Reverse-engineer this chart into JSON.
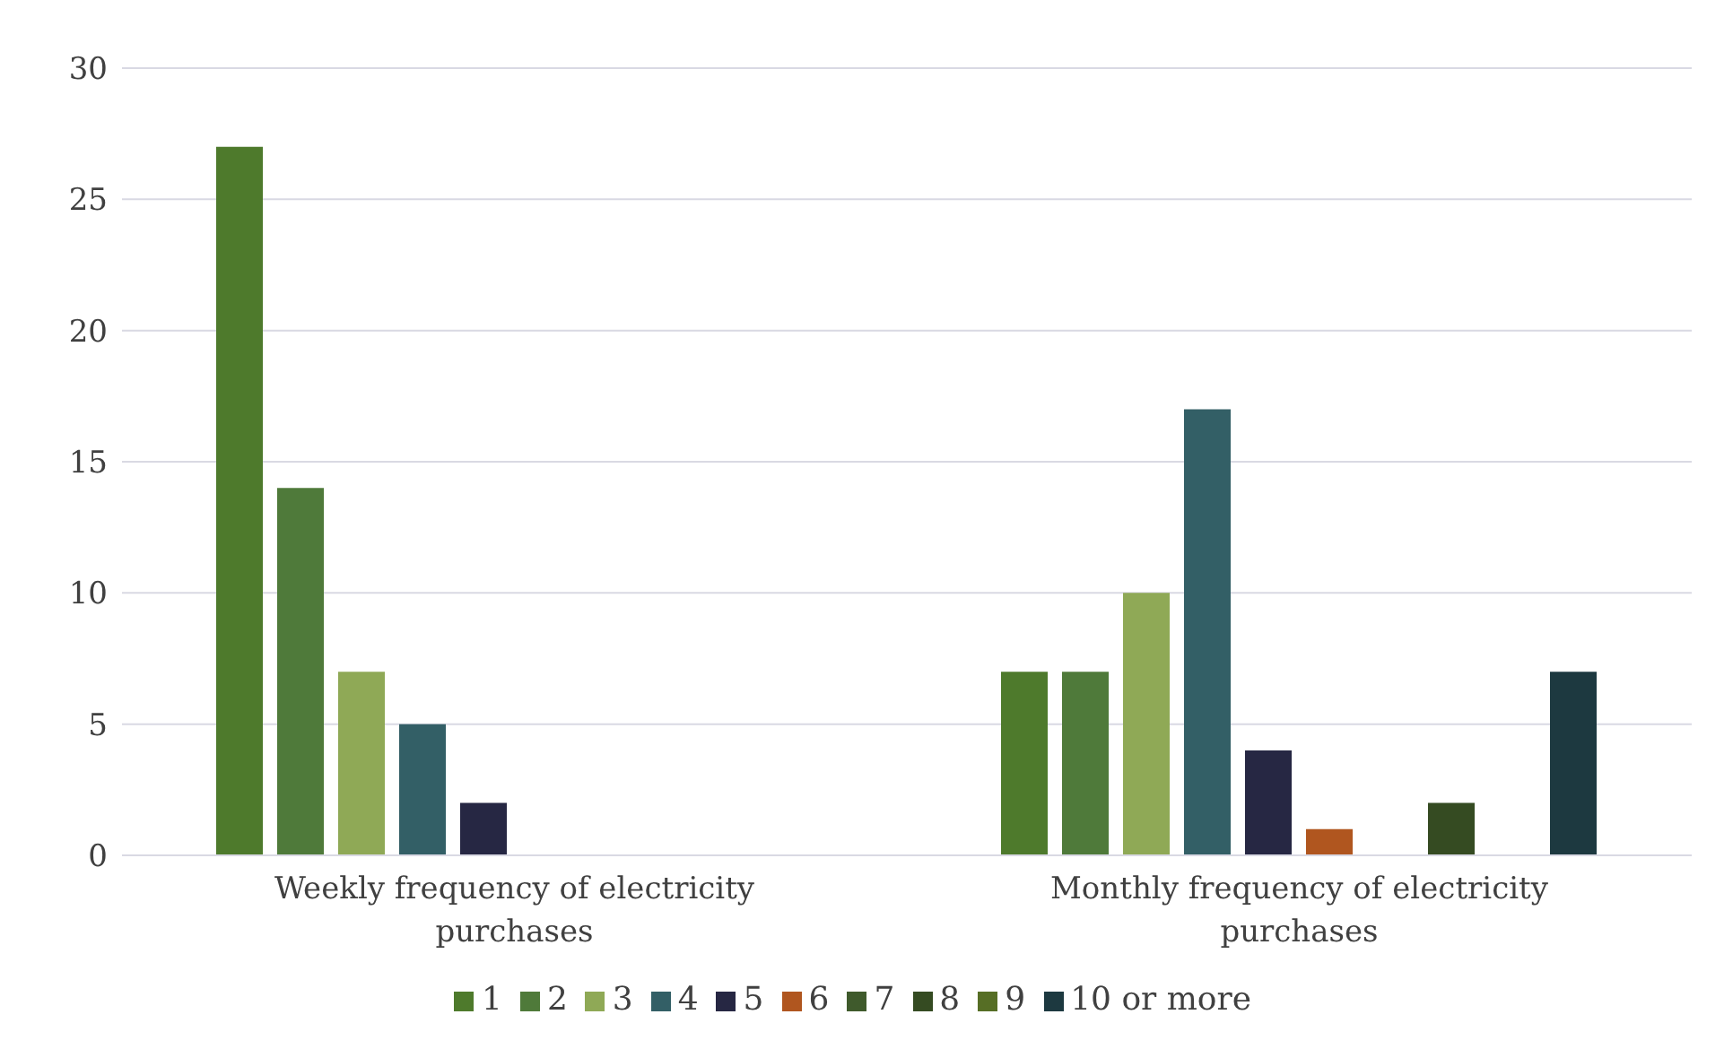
{
  "chart_data": {
    "type": "bar",
    "categories": [
      "Weekly frequency of electricity purchases",
      "Monthly frequency of electricity purchases"
    ],
    "series": [
      {
        "name": "1",
        "color": "#4e7a2c",
        "values": [
          27,
          7
        ]
      },
      {
        "name": "2",
        "color": "#4f7a3a",
        "values": [
          14,
          7
        ]
      },
      {
        "name": "3",
        "color": "#8fa956",
        "values": [
          7,
          10
        ]
      },
      {
        "name": "4",
        "color": "#335f66",
        "values": [
          5,
          17
        ]
      },
      {
        "name": "5",
        "color": "#262743",
        "values": [
          2,
          4
        ]
      },
      {
        "name": "6",
        "color": "#b0561f",
        "values": [
          0,
          1
        ]
      },
      {
        "name": "7",
        "color": "#3f5a2c",
        "values": [
          0,
          0
        ]
      },
      {
        "name": "8",
        "color": "#354b22",
        "values": [
          0,
          2
        ]
      },
      {
        "name": "9",
        "color": "#566e25",
        "values": [
          0,
          0
        ]
      },
      {
        "name": "10 or more",
        "color": "#1d3940",
        "values": [
          0,
          7
        ]
      }
    ],
    "ylim": [
      0,
      30
    ],
    "yticks": [
      0,
      5,
      10,
      15,
      20,
      25,
      30
    ],
    "grid": "y",
    "legend": "bottom"
  }
}
